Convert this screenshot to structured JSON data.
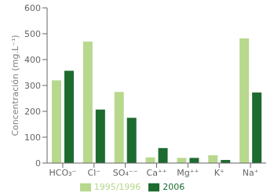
{
  "chart_data": {
    "type": "bar",
    "categories": [
      "HCO₃⁻",
      "Cl⁻",
      "SO₄⁻⁻",
      "Ca⁺⁺",
      "Mg⁺⁺",
      "K⁺",
      "Na⁺"
    ],
    "series": [
      {
        "name": "1995/1996",
        "color": "#b8d98d",
        "values": [
          320,
          470,
          275,
          22,
          20,
          30,
          482
        ]
      },
      {
        "name": "2006",
        "color": "#1e6b30",
        "values": [
          357,
          207,
          175,
          58,
          20,
          12,
          273
        ]
      }
    ],
    "ylabel": "Concentración (mg.L⁻¹)",
    "ylim": [
      0,
      600
    ],
    "yticks": [
      0,
      100,
      200,
      300,
      400,
      500,
      600
    ],
    "grid": false,
    "legend": "bottom"
  }
}
